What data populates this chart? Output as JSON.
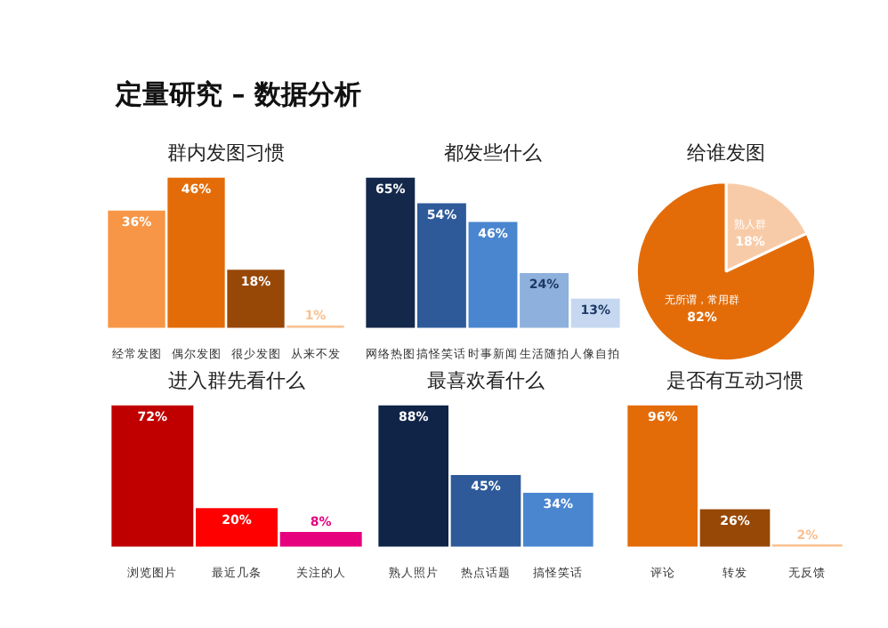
{
  "chart_data": [
    {
      "type": "bar",
      "title": "群内发图习惯",
      "annotations": [
        "定量研究 – 数据分析"
      ],
      "categories": [
        "经常发图",
        "偶尔发图",
        "很少发图",
        "从来不发"
      ],
      "values": [
        36,
        46,
        18,
        1
      ],
      "colors": [
        "#f79646",
        "#e36c09",
        "#974706",
        "#fac090"
      ],
      "value_labels": [
        "36%",
        "46%",
        "18%",
        "1%"
      ]
    },
    {
      "type": "bar",
      "title": "都发些什么",
      "categories": [
        "网络热图",
        "搞怪笑话",
        "时事新闻",
        "生活随拍",
        "人像自拍"
      ],
      "values": [
        65,
        54,
        46,
        24,
        13
      ],
      "colors": [
        "#14284b",
        "#2e5a9a",
        "#4a86d0",
        "#8eb0dc",
        "#c5d8f0"
      ],
      "value_labels": [
        "65%",
        "54%",
        "46%",
        "24%",
        "13%"
      ]
    },
    {
      "type": "pie",
      "title": "给谁发图",
      "categories": [
        "熟人群",
        "无所谓，常用群"
      ],
      "values": [
        18,
        82
      ],
      "colors": [
        "#f8cba8",
        "#e36c09"
      ],
      "value_labels": [
        "18%",
        "82%"
      ]
    },
    {
      "type": "bar",
      "title": "进入群先看什么",
      "categories": [
        "浏览图片",
        "最近几条",
        "关注的人"
      ],
      "values": [
        72,
        20,
        8
      ],
      "colors": [
        "#c00000",
        "#ff0000",
        "#e6007e"
      ],
      "value_labels": [
        "72%",
        "20%",
        "8%"
      ]
    },
    {
      "type": "bar",
      "title": "最喜欢看什么",
      "categories": [
        "熟人照片",
        "热点话题",
        "搞怪笑话"
      ],
      "values": [
        88,
        45,
        34
      ],
      "colors": [
        "#0f2447",
        "#2e5a9a",
        "#4a86d0"
      ],
      "value_labels": [
        "88%",
        "45%",
        "34%"
      ]
    },
    {
      "type": "bar",
      "title": "是否有互动习惯",
      "categories": [
        "评论",
        "转发",
        "无反馈"
      ],
      "values": [
        96,
        26,
        2
      ],
      "colors": [
        "#e36c09",
        "#974706",
        "#fac090"
      ],
      "value_labels": [
        "96%",
        "26%",
        "2%"
      ]
    }
  ]
}
